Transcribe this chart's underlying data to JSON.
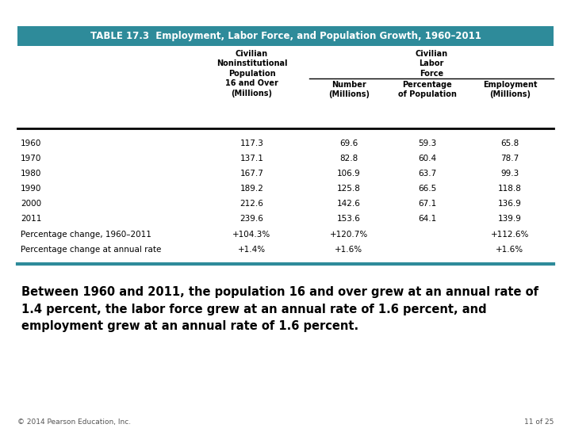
{
  "title": "TABLE 17.3  Employment, Labor Force, and Population Growth, 1960–2011",
  "title_bg": "#2e8b9a",
  "title_color": "#ffffff",
  "rows": [
    [
      "1960",
      "117.3",
      "69.6",
      "59.3",
      "65.8"
    ],
    [
      "1970",
      "137.1",
      "82.8",
      "60.4",
      "78.7"
    ],
    [
      "1980",
      "167.7",
      "106.9",
      "63.7",
      "99.3"
    ],
    [
      "1990",
      "189.2",
      "125.8",
      "66.5",
      "118.8"
    ],
    [
      "2000",
      "212.6",
      "142.6",
      "67.1",
      "136.9"
    ],
    [
      "2011",
      "239.6",
      "153.6",
      "64.1",
      "139.9"
    ]
  ],
  "pct_change_row": [
    "Percentage change, 1960–2011",
    "+104.3%",
    "+120.7%",
    "",
    "+112.6%"
  ],
  "annual_rate_row": [
    "Percentage change at annual rate",
    "+1.4%",
    "+1.6%",
    "",
    "+1.6%"
  ],
  "footnote": "© 2014 Pearson Education, Inc.",
  "page": "11 of 25",
  "body_text": "Between 1960 and 2011, the population 16 and over grew at an annual rate of\n1.4 percent, the labor force grew at an annual rate of 1.6 percent, and\nemployment grew at an annual rate of 1.6 percent.",
  "teal_color": "#2e8b9a",
  "black": "#000000",
  "gray": "#555555",
  "white": "#ffffff",
  "bg_color": "#ffffff",
  "col_header1_pop": "Civilian\nNoninstitutional\nPopulation\n16 and Over\n(Millions)",
  "col_header1_clf": "Civilian\nLabor\nForce",
  "col_header2_num": "Number\n(Millions)",
  "col_header2_pct": "Percentage\nof Population",
  "col_header2_emp": "Employment\n(Millions)"
}
